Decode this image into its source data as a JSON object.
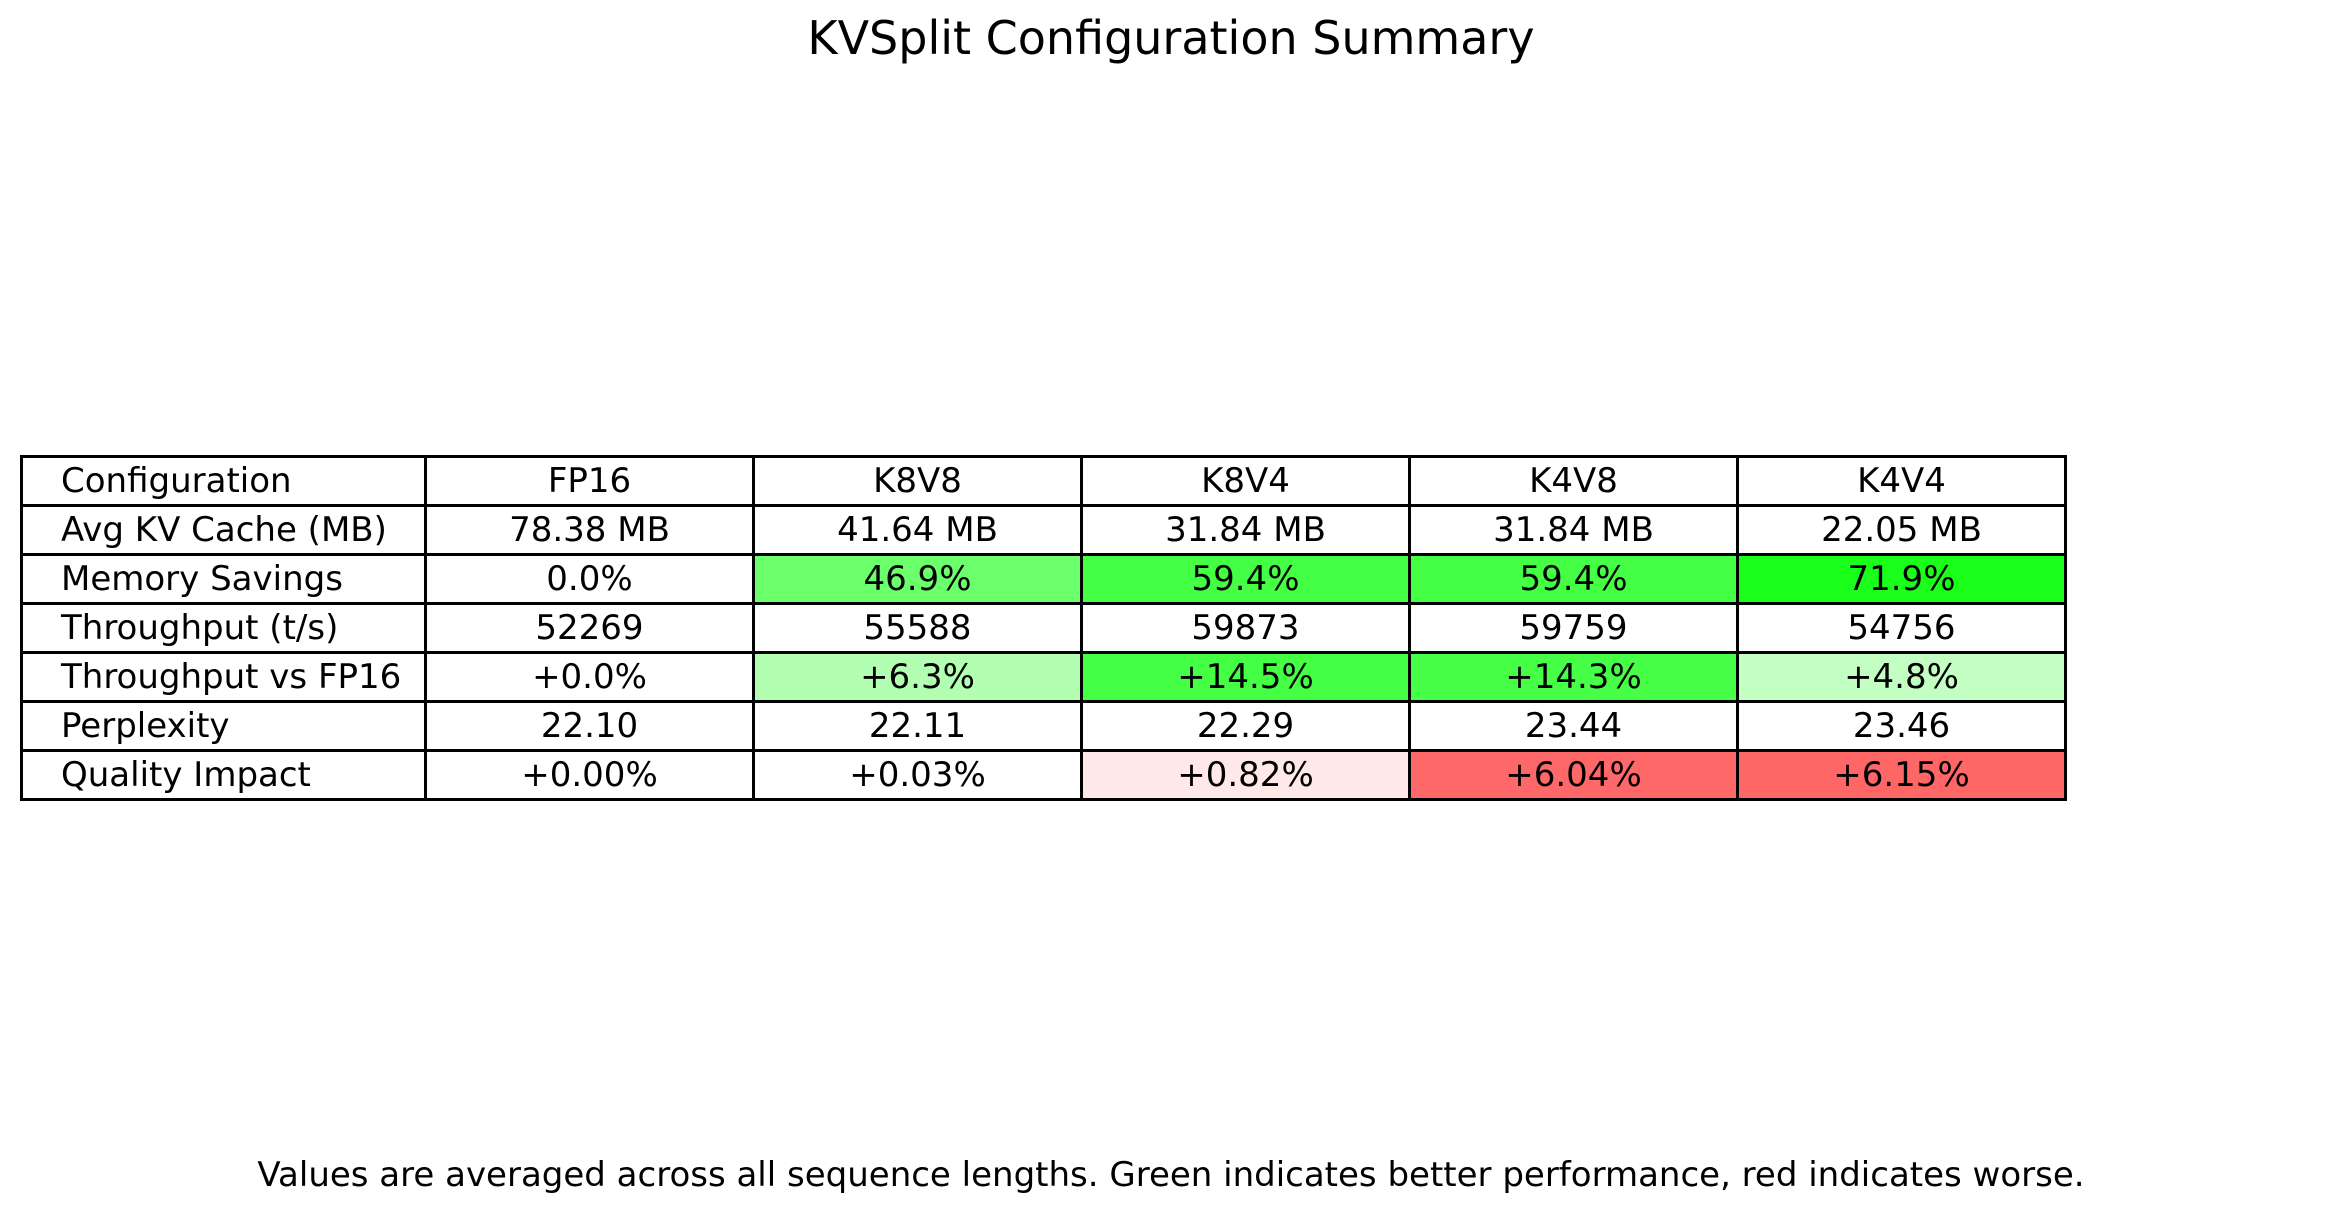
{
  "chart_data": {
    "type": "table",
    "title": "KVSplit Configuration Summary",
    "columns": [
      "Configuration",
      "FP16",
      "K8V8",
      "K8V4",
      "K4V8",
      "K4V4"
    ],
    "rows": [
      {
        "label": "Avg KV Cache (MB)",
        "cells": [
          {
            "text": "78.38 MB",
            "color": "#ffffff"
          },
          {
            "text": "41.64 MB",
            "color": "#ffffff"
          },
          {
            "text": "31.84 MB",
            "color": "#ffffff"
          },
          {
            "text": "31.84 MB",
            "color": "#ffffff"
          },
          {
            "text": "22.05 MB",
            "color": "#ffffff"
          }
        ]
      },
      {
        "label": "Memory Savings",
        "cells": [
          {
            "text": "0.0%",
            "color": "#ffffff"
          },
          {
            "text": "46.9%",
            "color": "#6bff6b"
          },
          {
            "text": "59.4%",
            "color": "#44ff44"
          },
          {
            "text": "59.4%",
            "color": "#44ff44"
          },
          {
            "text": "71.9%",
            "color": "#1aff1a"
          }
        ]
      },
      {
        "label": "Throughput (t/s)",
        "cells": [
          {
            "text": "52269",
            "color": "#ffffff"
          },
          {
            "text": "55588",
            "color": "#ffffff"
          },
          {
            "text": "59873",
            "color": "#ffffff"
          },
          {
            "text": "59759",
            "color": "#ffffff"
          },
          {
            "text": "54756",
            "color": "#ffffff"
          }
        ]
      },
      {
        "label": "Throughput vs FP16",
        "cells": [
          {
            "text": "+0.0%",
            "color": "#ffffff"
          },
          {
            "text": "+6.3%",
            "color": "#b2ffb2"
          },
          {
            "text": "+14.5%",
            "color": "#44ff44"
          },
          {
            "text": "+14.3%",
            "color": "#47ff47"
          },
          {
            "text": "+4.8%",
            "color": "#c3ffc3"
          }
        ]
      },
      {
        "label": "Perplexity",
        "cells": [
          {
            "text": "22.10",
            "color": "#ffffff"
          },
          {
            "text": "22.11",
            "color": "#ffffff"
          },
          {
            "text": "22.29",
            "color": "#ffffff"
          },
          {
            "text": "23.44",
            "color": "#ffffff"
          },
          {
            "text": "23.46",
            "color": "#ffffff"
          }
        ]
      },
      {
        "label": "Quality Impact",
        "cells": [
          {
            "text": "+0.00%",
            "color": "#ffffff"
          },
          {
            "text": "+0.03%",
            "color": "#ffffff"
          },
          {
            "text": "+0.82%",
            "color": "#ffe8e8"
          },
          {
            "text": "+6.04%",
            "color": "#ff6868"
          },
          {
            "text": "+6.15%",
            "color": "#ff6666"
          }
        ]
      }
    ],
    "footnote": "Values are averaged across all sequence lengths. Green indicates better performance, red indicates worse."
  }
}
